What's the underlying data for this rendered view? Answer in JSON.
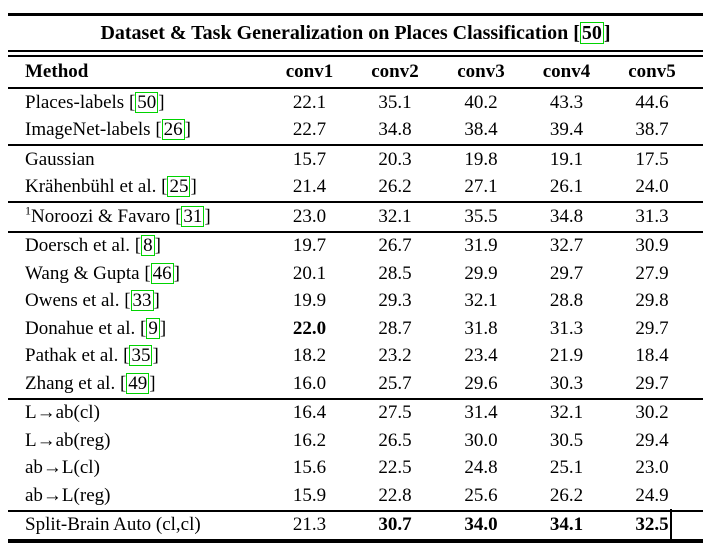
{
  "colors": {
    "text": "#000000",
    "background": "#ffffff",
    "citation_box": "#00d300",
    "rule": "#000000"
  },
  "table": {
    "title": "Dataset & Task Generalization on Places Classification",
    "title_ref": "50",
    "columns": [
      "Method",
      "conv1",
      "conv2",
      "conv3",
      "conv4",
      "conv5"
    ],
    "groups": [
      {
        "rows": [
          {
            "method": "Places-labels",
            "ref": "50",
            "values": [
              "22.1",
              "35.1",
              "40.2",
              "43.3",
              "44.6"
            ],
            "bold_values": []
          },
          {
            "method": "ImageNet-labels",
            "ref": "26",
            "values": [
              "22.7",
              "34.8",
              "38.4",
              "39.4",
              "38.7"
            ],
            "bold_values": []
          }
        ]
      },
      {
        "rows": [
          {
            "method": "Gaussian",
            "ref": null,
            "values": [
              "15.7",
              "20.3",
              "19.8",
              "19.1",
              "17.5"
            ],
            "bold_values": []
          },
          {
            "method": "Krähenbühl et al.",
            "ref": "25",
            "values": [
              "21.4",
              "26.2",
              "27.1",
              "26.1",
              "24.0"
            ],
            "bold_values": []
          }
        ]
      },
      {
        "rows": [
          {
            "sup": "1",
            "method": "Noroozi & Favaro",
            "ref": "31",
            "values": [
              "23.0",
              "32.1",
              "35.5",
              "34.8",
              "31.3"
            ],
            "bold_values": []
          }
        ]
      },
      {
        "rows": [
          {
            "method": "Doersch et al.",
            "ref": "8",
            "values": [
              "19.7",
              "26.7",
              "31.9",
              "32.7",
              "30.9"
            ],
            "bold_values": []
          },
          {
            "method": "Wang & Gupta",
            "ref": "46",
            "values": [
              "20.1",
              "28.5",
              "29.9",
              "29.7",
              "27.9"
            ],
            "bold_values": []
          },
          {
            "method": "Owens et al.",
            "ref": "33",
            "values": [
              "19.9",
              "29.3",
              "32.1",
              "28.8",
              "29.8"
            ],
            "bold_values": []
          },
          {
            "method": "Donahue et al.",
            "ref": "9",
            "values": [
              "22.0",
              "28.7",
              "31.8",
              "31.3",
              "29.7"
            ],
            "bold_values": [
              0
            ]
          },
          {
            "method": "Pathak et al.",
            "ref": "35",
            "values": [
              "18.2",
              "23.2",
              "23.4",
              "21.9",
              "18.4"
            ],
            "bold_values": []
          },
          {
            "method": "Zhang et al.",
            "ref": "49",
            "values": [
              "16.0",
              "25.7",
              "29.6",
              "30.3",
              "29.7"
            ],
            "bold_values": []
          }
        ]
      },
      {
        "rows": [
          {
            "method": "L→ab(cl)",
            "ref": null,
            "values": [
              "16.4",
              "27.5",
              "31.4",
              "32.1",
              "30.2"
            ],
            "bold_values": []
          },
          {
            "method": "L→ab(reg)",
            "ref": null,
            "values": [
              "16.2",
              "26.5",
              "30.0",
              "30.5",
              "29.4"
            ],
            "bold_values": []
          },
          {
            "method": "ab→L(cl)",
            "ref": null,
            "values": [
              "15.6",
              "22.5",
              "24.8",
              "25.1",
              "23.0"
            ],
            "bold_values": []
          },
          {
            "method": "ab→L(reg)",
            "ref": null,
            "values": [
              "15.9",
              "22.8",
              "25.6",
              "26.2",
              "24.9"
            ],
            "bold_values": []
          }
        ]
      },
      {
        "rows": [
          {
            "method": "Split-Brain Auto (cl,cl)",
            "ref": null,
            "values": [
              "21.3",
              "30.7",
              "34.0",
              "34.1",
              "32.5"
            ],
            "bold_values": [
              1,
              2,
              3,
              4
            ]
          }
        ]
      }
    ]
  }
}
